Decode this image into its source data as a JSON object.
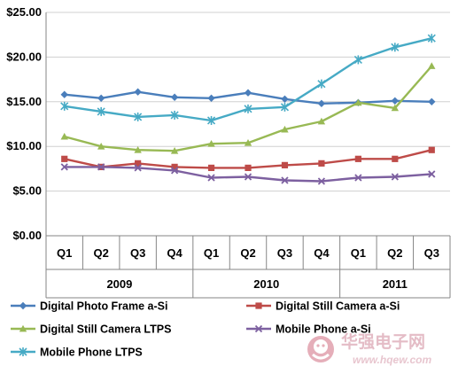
{
  "chart_data": {
    "type": "line",
    "title": "",
    "xlabel": "",
    "ylabel": "",
    "categories": [
      "Q1",
      "Q2",
      "Q3",
      "Q4",
      "Q1",
      "Q2",
      "Q3",
      "Q4",
      "Q1",
      "Q2",
      "Q3"
    ],
    "year_groups": [
      {
        "label": "2009",
        "span": [
          0,
          3
        ]
      },
      {
        "label": "2010",
        "span": [
          4,
          7
        ]
      },
      {
        "label": "2011",
        "span": [
          8,
          10
        ]
      }
    ],
    "y_ticks": [
      "$0.00",
      "$5.00",
      "$10.00",
      "$15.00",
      "$20.00",
      "$25.00"
    ],
    "ylim": [
      0,
      25
    ],
    "grid": true,
    "legend_position": "bottom",
    "series": [
      {
        "name": "Digital Photo Frame a-Si",
        "color": "#4a7ebb",
        "marker": "diamond",
        "values": [
          15.8,
          15.4,
          16.1,
          15.5,
          15.4,
          16.0,
          15.3,
          14.8,
          14.9,
          15.1,
          15.0
        ]
      },
      {
        "name": "Digital Still Camera a-Si",
        "color": "#be4b48",
        "marker": "square",
        "values": [
          8.6,
          7.7,
          8.1,
          7.7,
          7.6,
          7.6,
          7.9,
          8.1,
          8.6,
          8.6,
          9.6
        ]
      },
      {
        "name": "Digital Still Camera LTPS",
        "color": "#98b954",
        "marker": "triangle",
        "values": [
          11.1,
          10.0,
          9.6,
          9.5,
          10.3,
          10.4,
          11.9,
          12.8,
          14.9,
          14.3,
          19.0
        ]
      },
      {
        "name": "Mobile Phone a-Si",
        "color": "#7d60a0",
        "marker": "x",
        "values": [
          7.7,
          7.7,
          7.6,
          7.3,
          6.5,
          6.6,
          6.2,
          6.1,
          6.5,
          6.6,
          6.9
        ]
      },
      {
        "name": "Mobile Phone LTPS",
        "color": "#46aac5",
        "marker": "star",
        "values": [
          14.5,
          13.9,
          13.3,
          13.5,
          12.9,
          14.2,
          14.4,
          17.0,
          19.7,
          21.1,
          22.1
        ]
      }
    ]
  },
  "watermark": {
    "logo_icon": "red-mascot-logo",
    "name": "华强电子网",
    "url": "www.hqew.com"
  }
}
